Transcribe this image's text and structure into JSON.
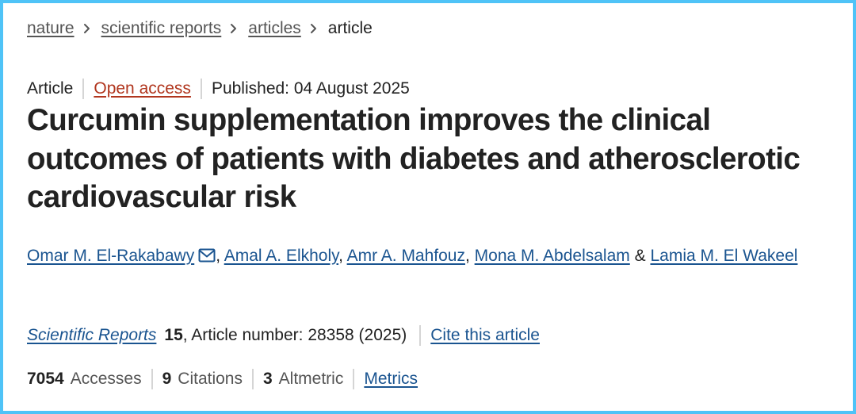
{
  "breadcrumb": {
    "items": [
      "nature",
      "scientific reports",
      "articles"
    ],
    "current": "article"
  },
  "meta": {
    "type": "Article",
    "access": "Open access",
    "published": "Published: 04 August 2025"
  },
  "title": "Curcumin supplementation improves the clinical outcomes of patients with diabetes and atherosclerotic cardiovascular risk",
  "authors": {
    "list": [
      "Omar M. El-Rakabawy",
      "Amal A. Elkholy",
      "Amr A. Mahfouz",
      "Mona M. Abdelsalam",
      "Lamia M. El Wakeel"
    ],
    "separator": ", ",
    "conjunction": "&"
  },
  "citation": {
    "journal": "Scientific Reports",
    "volume": "15",
    "article_number": ", Article number: 28358 (2025)",
    "cite_link": "Cite this article"
  },
  "metrics": {
    "accesses": {
      "value": "7054",
      "label": "Accesses"
    },
    "citations": {
      "value": "9",
      "label": "Citations"
    },
    "altmetric": {
      "value": "3",
      "label": "Altmetric"
    },
    "link": "Metrics"
  },
  "colors": {
    "link": "#1a5490",
    "open_access": "#b1361e",
    "frame_border": "#4fc3f7",
    "text": "#222222"
  },
  "icons": {
    "breadcrumb_separator": "chevron-right-icon",
    "corresponding_author": "mail-icon"
  }
}
